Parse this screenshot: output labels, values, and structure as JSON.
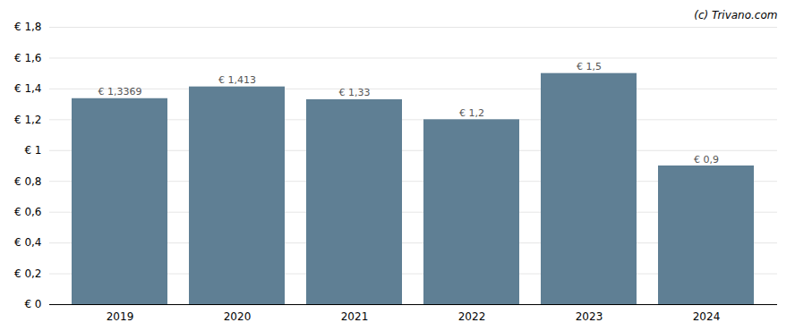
{
  "chart_data": {
    "type": "bar",
    "categories": [
      "2019",
      "2020",
      "2021",
      "2022",
      "2023",
      "2024"
    ],
    "values": [
      1.3369,
      1.413,
      1.33,
      1.2,
      1.5,
      0.9
    ],
    "value_labels": [
      "€ 1,3369",
      "€ 1,413",
      "€ 1,33",
      "€ 1,2",
      "€ 1,5",
      "€ 0,9"
    ],
    "data_labels": true,
    "color": "#5f7f94",
    "ylim": [
      0,
      1.8
    ],
    "yticks": [
      {
        "value": 0,
        "label": "€ 0"
      },
      {
        "value": 0.2,
        "label": "€ 0,2"
      },
      {
        "value": 0.4,
        "label": "€ 0,4"
      },
      {
        "value": 0.6,
        "label": "€ 0,6"
      },
      {
        "value": 0.8,
        "label": "€ 0,8"
      },
      {
        "value": 1.0,
        "label": "€ 1"
      },
      {
        "value": 1.2,
        "label": "€ 1,2"
      },
      {
        "value": 1.4,
        "label": "€ 1,4"
      },
      {
        "value": 1.6,
        "label": "€ 1,6"
      },
      {
        "value": 1.8,
        "label": "€ 1,8"
      }
    ],
    "grid": true,
    "annotations": [
      "(c) Trivano.com"
    ]
  }
}
